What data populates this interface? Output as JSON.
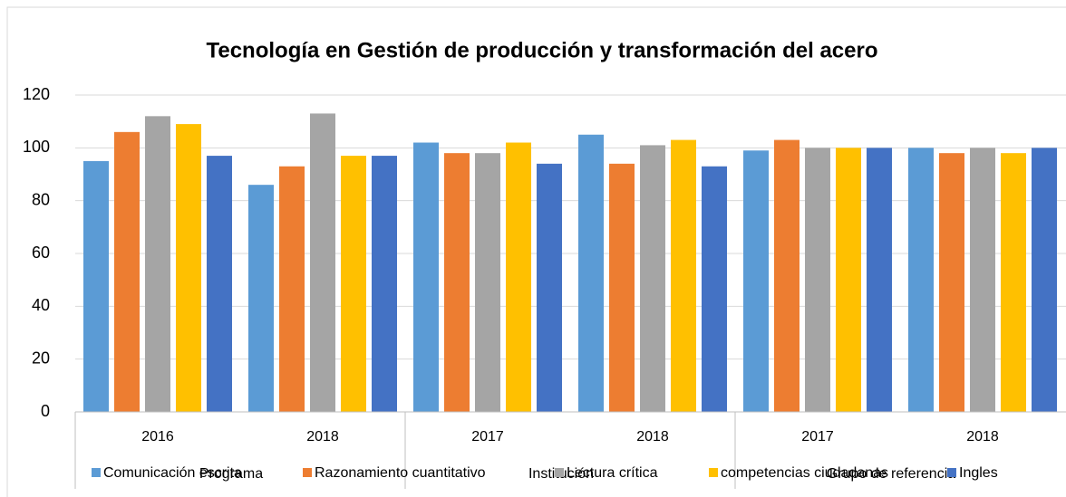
{
  "chart_data": {
    "type": "bar",
    "title": "Tecnología en Gestión de producción y transformación del acero",
    "categories": [
      "2016",
      "2018",
      "2017",
      "2018",
      "2017",
      "2018"
    ],
    "groups": [
      "Programa",
      "Institución",
      "Grupo de referencia"
    ],
    "series": [
      {
        "name": "Comunicación escrita",
        "color": "#5b9bd5",
        "values": [
          95,
          86,
          102,
          105,
          99,
          100
        ]
      },
      {
        "name": "Razonamiento cuantitativo",
        "color": "#ed7d31",
        "values": [
          106,
          93,
          98,
          94,
          103,
          98
        ]
      },
      {
        "name": "Lectura crítica",
        "color": "#a5a5a5",
        "values": [
          112,
          113,
          98,
          101,
          100,
          100
        ]
      },
      {
        "name": "competencias ciudadanas",
        "color": "#ffc000",
        "values": [
          109,
          97,
          102,
          103,
          100,
          98
        ]
      },
      {
        "name": "Ingles",
        "color": "#4472c4",
        "values": [
          97,
          97,
          94,
          93,
          100,
          100
        ]
      }
    ],
    "ylim": [
      0,
      120
    ],
    "yticks": [
      0,
      20,
      40,
      60,
      80,
      100,
      120
    ],
    "grid": true,
    "legend": "bottom"
  }
}
